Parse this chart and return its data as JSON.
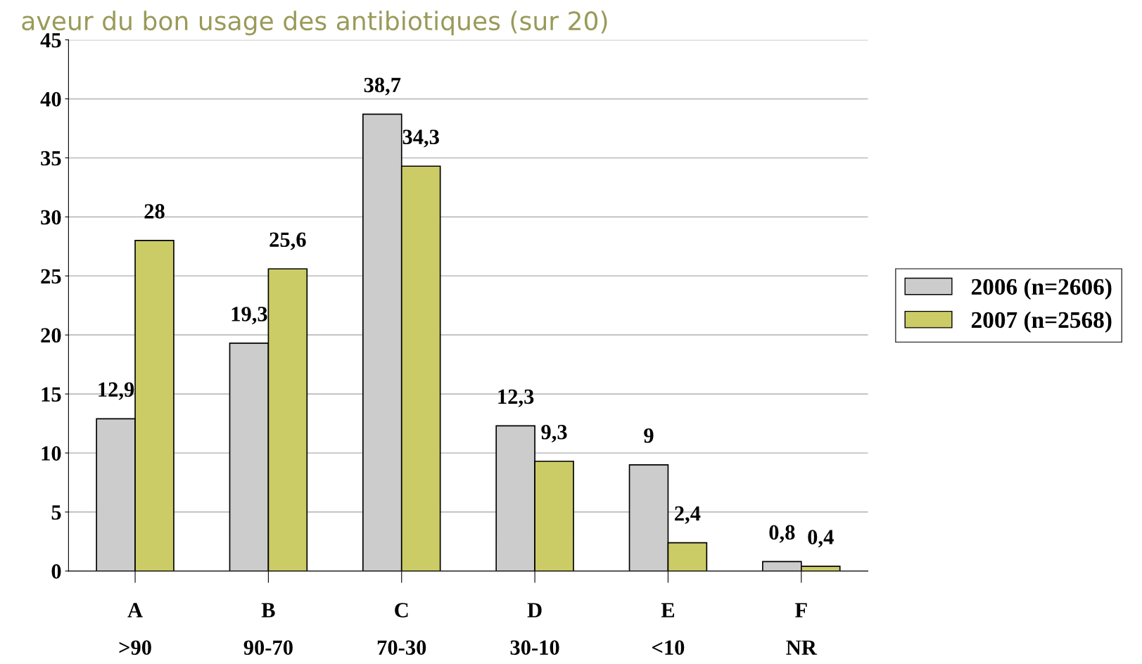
{
  "chart_data": {
    "type": "bar",
    "title": "aveur du bon usage des antibiotiques (sur 20)",
    "categories": [
      "A\n>90",
      "B\n90-70",
      "C\n70-30",
      "D\n30-10",
      "E\n<10",
      "F\nNR"
    ],
    "series": [
      {
        "name": "2006 (n=2606)",
        "color": "#cccccc",
        "values": [
          12.9,
          19.3,
          38.7,
          12.3,
          9,
          0.8
        ],
        "value_labels": [
          "12,9",
          "19,3",
          "38,7",
          "12,3",
          "9",
          "0,8"
        ]
      },
      {
        "name": "2007 (n=2568)",
        "color": "#cccc66",
        "values": [
          28,
          25.6,
          34.3,
          9.3,
          2.4,
          0.4
        ],
        "value_labels": [
          "28",
          "25,6",
          "34,3",
          "9,3",
          "2,4",
          "0,4"
        ]
      }
    ],
    "ylim": [
      0,
      45
    ],
    "yticks": [
      0,
      5,
      10,
      15,
      20,
      25,
      30,
      35,
      40,
      45
    ],
    "grid": "y",
    "legend": "right"
  }
}
